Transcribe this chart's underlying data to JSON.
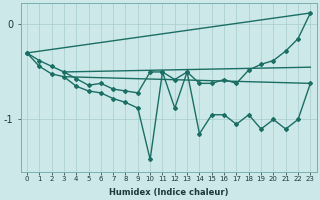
{
  "xlabel": "Humidex (Indice chaleur)",
  "ylabel": "",
  "bg_color": "#cde8e8",
  "line_color": "#1a6e64",
  "grid_color": "#a8cccc",
  "xlim": [
    -0.5,
    23.5
  ],
  "ylim": [
    -1.55,
    0.22
  ],
  "yticks": [
    0,
    -1
  ],
  "xticks": [
    0,
    1,
    2,
    3,
    4,
    5,
    6,
    7,
    8,
    9,
    10,
    11,
    12,
    13,
    14,
    15,
    16,
    17,
    18,
    19,
    20,
    21,
    22,
    23
  ],
  "series": [
    {
      "x": [
        0,
        23
      ],
      "y": [
        -0.3,
        0.12
      ],
      "marker": false,
      "linewidth": 1.0
    },
    {
      "x": [
        3,
        23
      ],
      "y": [
        -0.5,
        -0.45
      ],
      "marker": false,
      "linewidth": 1.0
    },
    {
      "x": [
        3,
        23
      ],
      "y": [
        -0.55,
        -0.62
      ],
      "marker": false,
      "linewidth": 1.0
    },
    {
      "x": [
        0,
        1,
        2,
        3,
        4,
        5,
        6,
        7,
        8,
        9,
        10,
        11,
        12,
        13,
        14,
        15,
        16,
        17,
        18,
        19,
        20,
        21,
        22,
        23
      ],
      "y": [
        -0.3,
        -0.38,
        -0.44,
        -0.5,
        -0.57,
        -0.64,
        -0.62,
        -0.68,
        -0.7,
        -0.72,
        -0.5,
        -0.5,
        -0.58,
        -0.5,
        -0.62,
        -0.62,
        -0.58,
        -0.62,
        -0.48,
        -0.42,
        -0.38,
        -0.28,
        -0.15,
        0.12
      ],
      "marker": true,
      "linewidth": 1.0
    },
    {
      "x": [
        0,
        1,
        2,
        3,
        4,
        5,
        6,
        7,
        8,
        9,
        10,
        11,
        12,
        13,
        14,
        15,
        16,
        17,
        18,
        19,
        20,
        21,
        22,
        23
      ],
      "y": [
        -0.3,
        -0.44,
        -0.52,
        -0.55,
        -0.65,
        -0.7,
        -0.72,
        -0.78,
        -0.82,
        -0.88,
        -1.42,
        -0.5,
        -0.88,
        -0.5,
        -1.15,
        -0.95,
        -0.95,
        -1.05,
        -0.95,
        -1.1,
        -1.0,
        -1.1,
        -1.0,
        -0.62
      ],
      "marker": true,
      "linewidth": 1.0
    }
  ]
}
